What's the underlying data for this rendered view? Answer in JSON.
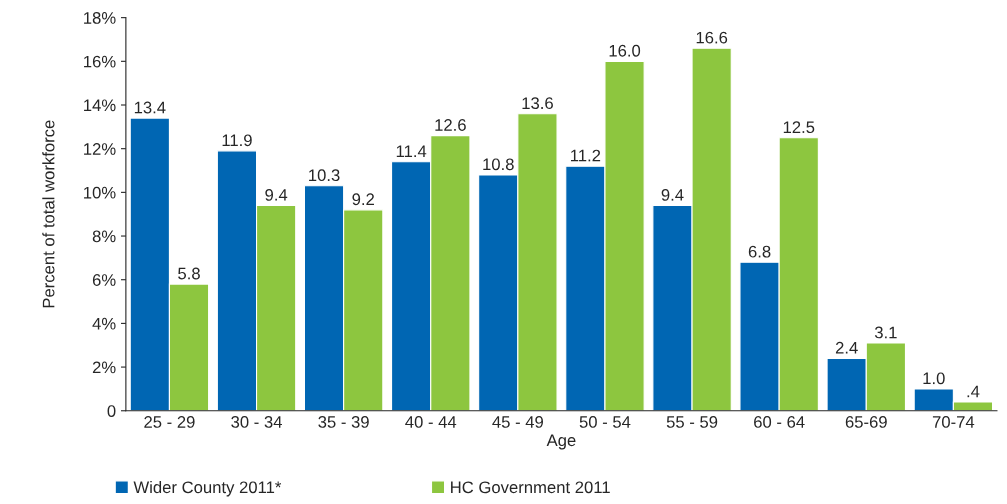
{
  "chart_data": {
    "type": "bar",
    "xlabel": "Age",
    "ylabel": "Percent of total workforce",
    "categories": [
      "25 - 29",
      "30 - 34",
      "35 - 39",
      "40 - 44",
      "45 - 49",
      "50 - 54",
      "55 - 59",
      "60 - 64",
      "65-69",
      "70-74"
    ],
    "series": [
      {
        "name": "Wider County 2011*",
        "color": "#0066b3",
        "values": [
          13.4,
          11.9,
          10.3,
          11.4,
          10.8,
          11.2,
          9.4,
          6.8,
          2.4,
          1.0
        ],
        "value_labels": [
          "13.4",
          "11.9",
          "10.3",
          "11.4",
          "10.8",
          "11.2",
          "9.4",
          "6.8",
          "2.4",
          "1.0"
        ]
      },
      {
        "name": "HC Government 2011",
        "color": "#8dc63f",
        "values": [
          5.8,
          9.4,
          9.2,
          12.6,
          13.6,
          16.0,
          16.6,
          12.5,
          3.1,
          0.4
        ],
        "value_labels": [
          "5.8",
          "9.4",
          "9.2",
          "12.6",
          "13.6",
          "16.0",
          "16.6",
          "12.5",
          "3.1",
          ".4"
        ]
      }
    ],
    "ylim": [
      0,
      18
    ],
    "yticks": [
      0,
      {
        "value": 2,
        "label": "2%"
      },
      {
        "value": 4,
        "label": "4%"
      },
      {
        "value": 6,
        "label": "6%"
      },
      {
        "value": 8,
        "label": "8%"
      },
      {
        "value": 10,
        "label": "10%"
      },
      {
        "value": 12,
        "label": "12%"
      },
      {
        "value": 14,
        "label": "14%"
      },
      {
        "value": 16,
        "label": "16%"
      },
      {
        "value": 18,
        "label": "18%"
      }
    ],
    "grid": false,
    "legend": "bottom left"
  }
}
